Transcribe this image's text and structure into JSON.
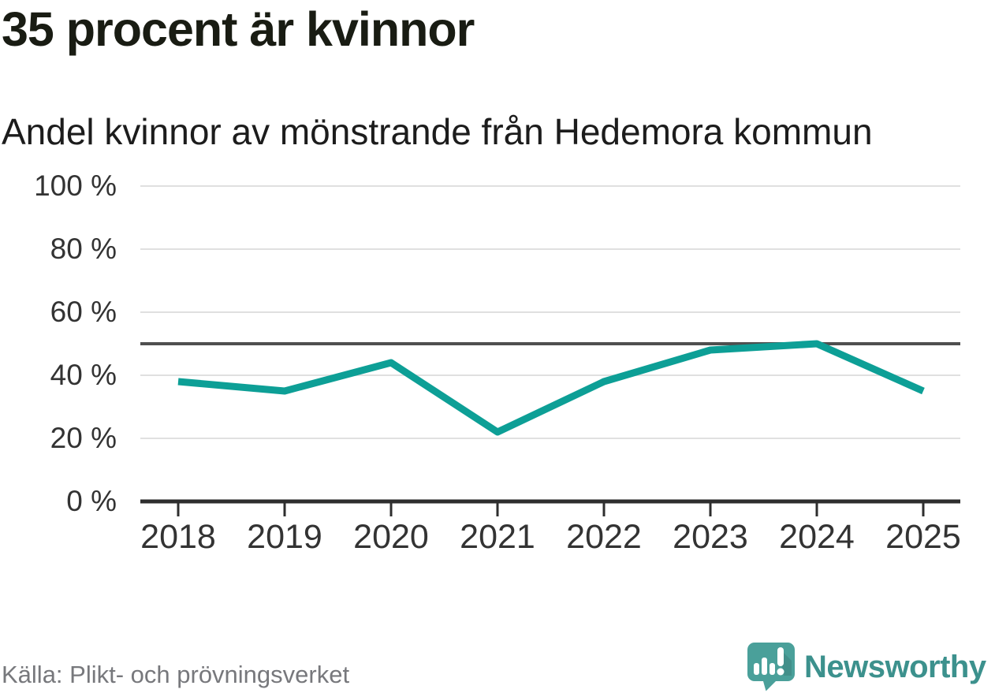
{
  "headline": "35 procent är kvinnor",
  "subtitle": "Andel kvinnor av mönstrande från Hedemora kommun",
  "source": "Källa: Plikt- och prövningsverket",
  "branding": {
    "name": "Newsworthy",
    "icon": "speech-bubble-bar-chart-icon",
    "wordmark_color": "#3c918d",
    "bubble_color": "#4aa09a"
  },
  "colors": {
    "accent_line": "#0d9f96",
    "reference_line": "#4f4f4f",
    "gridline": "#e0e0e0",
    "axis": "#2e2e2e",
    "tick_text": "#333333",
    "muted_text": "#77787c"
  },
  "chart_data": {
    "type": "line",
    "title": "35 procent är kvinnor",
    "subtitle": "Andel kvinnor av mönstrande från Hedemora kommun",
    "categories": [
      "2018",
      "2019",
      "2020",
      "2021",
      "2022",
      "2023",
      "2024",
      "2025"
    ],
    "series": [
      {
        "name": "Andel kvinnor av mönstrande",
        "values": [
          38,
          35,
          44,
          22,
          38,
          48,
          50,
          35
        ]
      }
    ],
    "unit": "%",
    "ylim": [
      0,
      100
    ],
    "y_ticks": [
      0,
      20,
      40,
      60,
      80,
      100
    ],
    "y_tick_labels": [
      "0 %",
      "20 %",
      "40 %",
      "60 %",
      "80 %",
      "100 %"
    ],
    "reference_line": 50,
    "grid": true,
    "legend": "none",
    "source": "Källa: Plikt- och prövningsverket"
  }
}
